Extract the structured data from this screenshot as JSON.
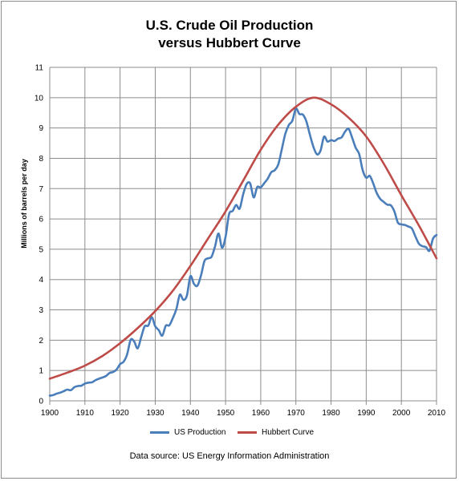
{
  "chart_data": {
    "type": "line",
    "title": "U.S. Crude Oil Production",
    "subtitle": "versus Hubbert Curve",
    "ylabel": "Millions of barrels per day",
    "xlabel": "",
    "xlim": [
      1900,
      2010
    ],
    "ylim": [
      0,
      11
    ],
    "xticks": [
      "1900",
      "1910",
      "1920",
      "1930",
      "1940",
      "1950",
      "1960",
      "1970",
      "1980",
      "1990",
      "2000",
      "2010"
    ],
    "yticks": [
      "0",
      "1",
      "2",
      "3",
      "4",
      "5",
      "6",
      "7",
      "8",
      "9",
      "10",
      "11"
    ],
    "grid": true,
    "legend_position": "bottom",
    "series": [
      {
        "name": "US Production",
        "color": "#4a7ebb",
        "x": [
          1900,
          1901,
          1902,
          1903,
          1904,
          1905,
          1906,
          1907,
          1908,
          1909,
          1910,
          1911,
          1912,
          1913,
          1914,
          1915,
          1916,
          1917,
          1918,
          1919,
          1920,
          1921,
          1922,
          1923,
          1924,
          1925,
          1926,
          1927,
          1928,
          1929,
          1930,
          1931,
          1932,
          1933,
          1934,
          1935,
          1936,
          1937,
          1938,
          1939,
          1940,
          1941,
          1942,
          1943,
          1944,
          1945,
          1946,
          1947,
          1948,
          1949,
          1950,
          1951,
          1952,
          1953,
          1954,
          1955,
          1956,
          1957,
          1958,
          1959,
          1960,
          1961,
          1962,
          1963,
          1964,
          1965,
          1966,
          1967,
          1968,
          1969,
          1970,
          1971,
          1972,
          1973,
          1974,
          1975,
          1976,
          1977,
          1978,
          1979,
          1980,
          1981,
          1982,
          1983,
          1984,
          1985,
          1986,
          1987,
          1988,
          1989,
          1990,
          1991,
          1992,
          1993,
          1994,
          1995,
          1996,
          1997,
          1998,
          1999,
          2000,
          2001,
          2002,
          2003,
          2004,
          2005,
          2006,
          2007,
          2008,
          2009,
          2010
        ],
        "values": [
          0.17,
          0.19,
          0.24,
          0.27,
          0.32,
          0.37,
          0.35,
          0.45,
          0.49,
          0.5,
          0.57,
          0.6,
          0.61,
          0.68,
          0.73,
          0.77,
          0.82,
          0.92,
          0.95,
          1.03,
          1.21,
          1.29,
          1.53,
          2.01,
          1.96,
          1.73,
          2.1,
          2.46,
          2.48,
          2.76,
          2.46,
          2.33,
          2.15,
          2.48,
          2.49,
          2.73,
          3.02,
          3.5,
          3.33,
          3.47,
          4.11,
          3.86,
          3.8,
          4.13,
          4.61,
          4.7,
          4.75,
          5.09,
          5.52,
          5.05,
          5.41,
          6.16,
          6.26,
          6.46,
          6.34,
          6.81,
          7.15,
          7.17,
          6.71,
          7.05,
          7.04,
          7.18,
          7.33,
          7.54,
          7.61,
          7.8,
          8.3,
          8.81,
          9.1,
          9.24,
          9.64,
          9.46,
          9.44,
          9.21,
          8.77,
          8.37,
          8.13,
          8.25,
          8.71,
          8.55,
          8.6,
          8.57,
          8.65,
          8.69,
          8.88,
          8.97,
          8.68,
          8.35,
          8.14,
          7.61,
          7.36,
          7.42,
          7.17,
          6.85,
          6.66,
          6.56,
          6.47,
          6.45,
          6.25,
          5.88,
          5.82,
          5.8,
          5.75,
          5.68,
          5.42,
          5.18,
          5.1,
          5.07,
          4.95,
          5.35,
          5.47
        ]
      },
      {
        "name": "Hubbert Curve",
        "color": "#be4b48",
        "peak_year": 1975,
        "peak_value": 10.0,
        "x": [
          1900,
          1905,
          1910,
          1915,
          1920,
          1925,
          1930,
          1935,
          1940,
          1945,
          1950,
          1955,
          1960,
          1965,
          1970,
          1975,
          1980,
          1985,
          1990,
          1995,
          2000,
          2005,
          2010
        ],
        "values": [
          0.73,
          0.93,
          1.16,
          1.48,
          1.9,
          2.4,
          2.96,
          3.63,
          4.45,
          5.35,
          6.25,
          7.26,
          8.28,
          9.11,
          9.7,
          10.0,
          9.78,
          9.34,
          8.72,
          7.82,
          6.78,
          5.78,
          4.7
        ]
      }
    ]
  },
  "legend": {
    "items": [
      {
        "label": "US Production",
        "color": "#4a7ebb"
      },
      {
        "label": "Hubbert Curve",
        "color": "#be4b48"
      }
    ]
  },
  "footer": {
    "source": "Data source: US Energy Information Administration"
  }
}
